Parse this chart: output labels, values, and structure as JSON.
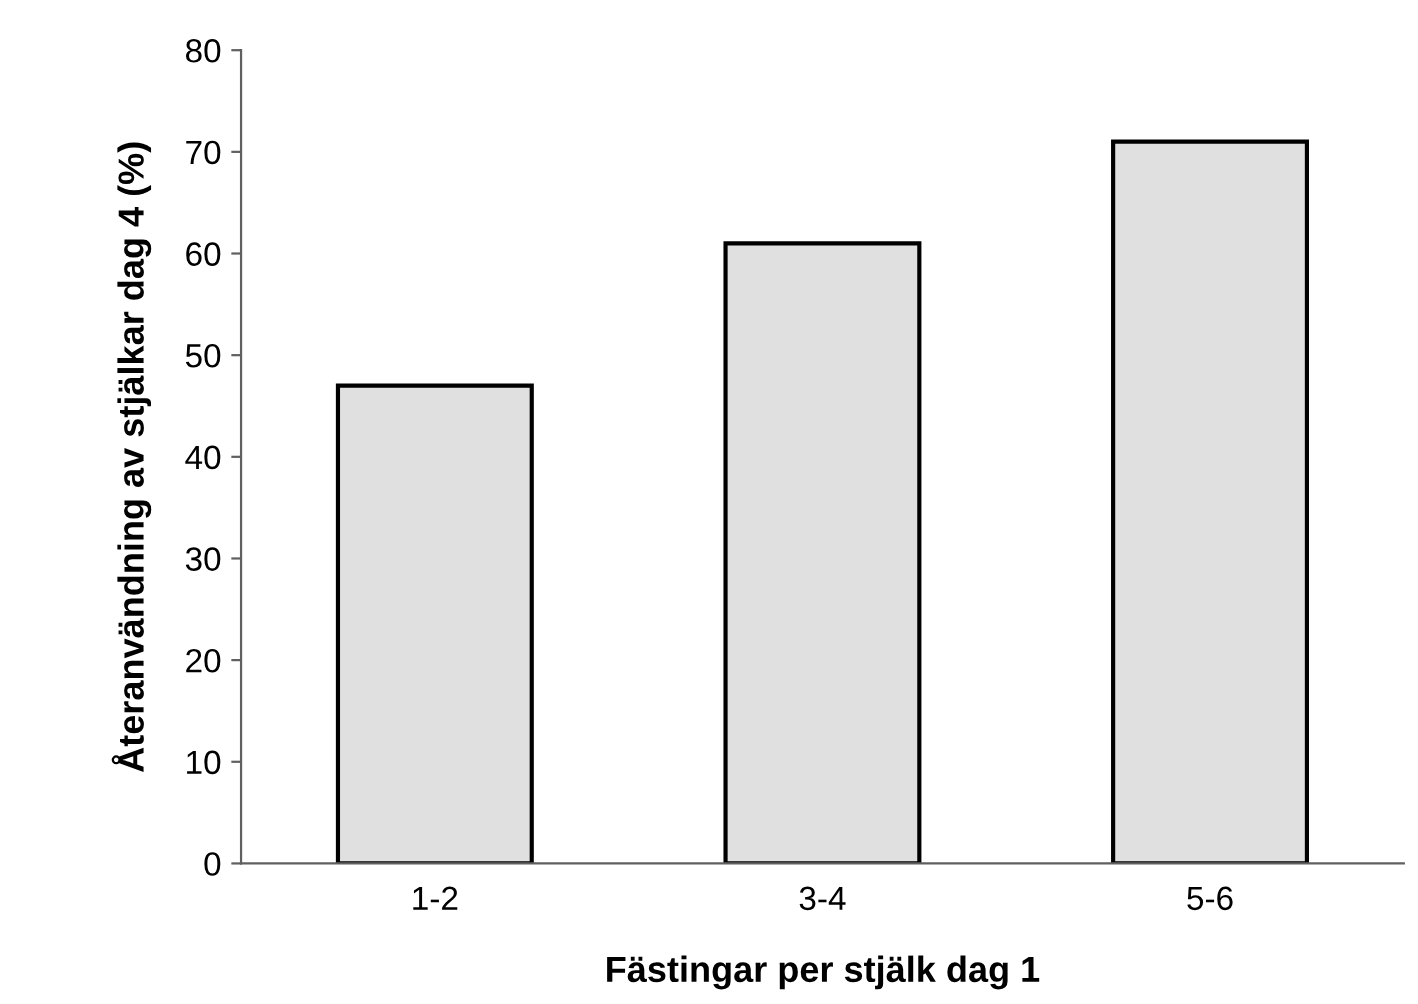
{
  "chart_data": {
    "type": "bar",
    "xlabel": "Fästingar per stjälk dag 1",
    "ylabel": "Återanvändning av stjälkar dag 4 (%)",
    "categories": [
      "1-2",
      "3-4",
      "5-6"
    ],
    "series": [
      {
        "color": "#e0e0e0",
        "values": [
          47,
          61,
          71
        ]
      }
    ],
    "ylim": [
      0,
      80
    ],
    "yticks": [
      0,
      10,
      20,
      30,
      40,
      50,
      60,
      70,
      80
    ],
    "grid": false,
    "legend": false
  }
}
